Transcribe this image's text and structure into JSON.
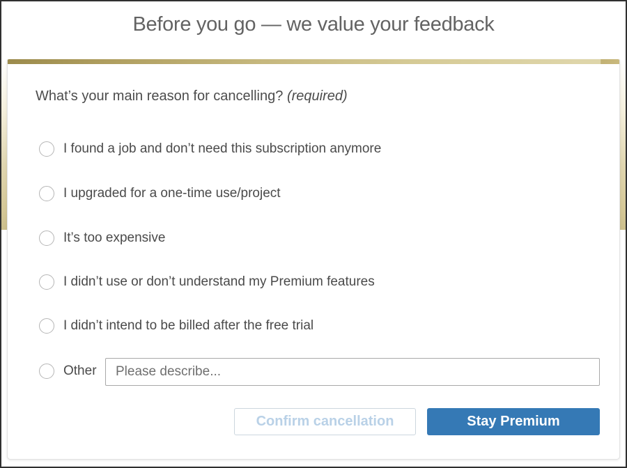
{
  "modal": {
    "title": "Before you go — we value your feedback",
    "question": "What’s your main reason for cancelling?",
    "required_note": "(required)",
    "options": [
      "I found a job and don’t need this subscription anymore",
      "I upgraded for a one-time use/project",
      "It’s too expensive",
      "I didn’t use or don’t understand my Premium features",
      "I didn’t intend to be billed after the free trial"
    ],
    "other": {
      "label": "Other",
      "placeholder": "Please describe...",
      "value": ""
    },
    "buttons": {
      "confirm_label": "Confirm cancellation",
      "stay_label": "Stay Premium"
    }
  },
  "colors": {
    "gold_dark": "#9c8b4c",
    "gold_light": "#ded5a9",
    "primary_blue": "#3579b5",
    "disabled_text": "#b9d1e7",
    "title_gray": "#636363",
    "body_text": "#4a4a4a"
  }
}
